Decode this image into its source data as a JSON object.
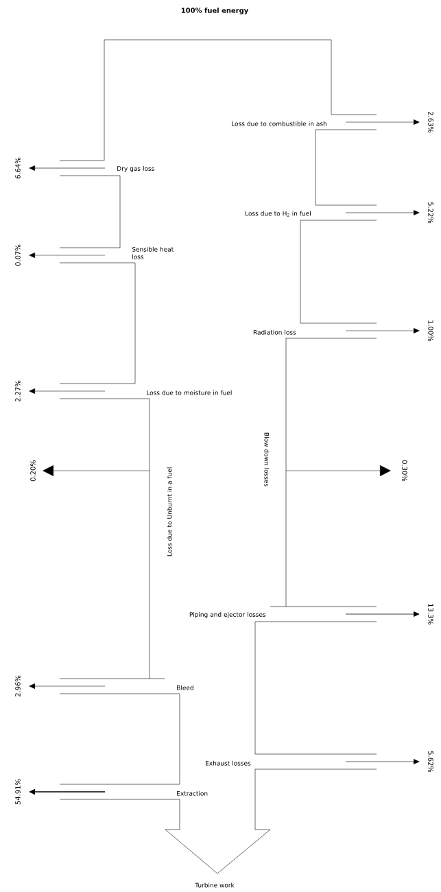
{
  "chart_data": {
    "type": "other",
    "title": "100% fuel energy",
    "categories": [
      "Dry gas loss",
      "Sensible heat loss",
      "Loss due to moisture in fuel",
      "Loss due to Unburnt in a fuel",
      "Bleed",
      "Extraction",
      "Loss due to combustible in ash",
      "Loss due to H$_{2}$ in fuel",
      "Radiation loss",
      "Blow down losses",
      "Piping and ejector losses",
      "Exhaust losses"
    ],
    "values": [
      6.64,
      0.07,
      2.27,
      0.2,
      2.96,
      54.91,
      2.63,
      5.22,
      1.0,
      0.3,
      13.3,
      5.62
    ],
    "value_labels": [
      "6.64%",
      "0.07%",
      "2.27%",
      "0.20%",
      "2.96%",
      "54.91%",
      "2.63%",
      "5.22%",
      "1.00%",
      "0.30%",
      "13.3%",
      "5.62%"
    ],
    "annotations": [
      "Turbine work"
    ]
  }
}
